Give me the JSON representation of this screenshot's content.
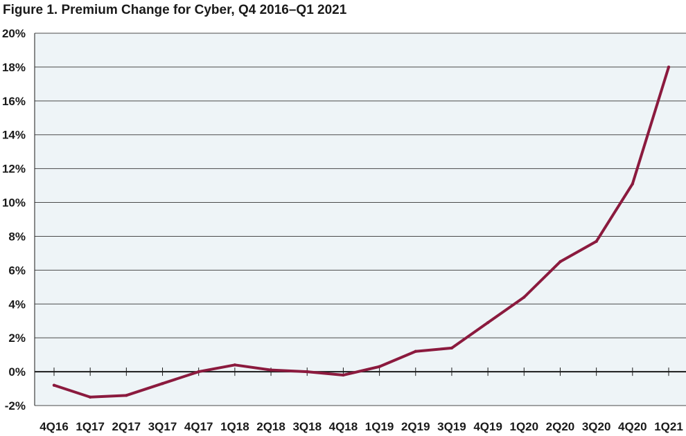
{
  "chart_data": {
    "type": "line",
    "title": "Figure 1. Premium Change for Cyber, Q4 2016–Q1 2021",
    "xlabel": "",
    "ylabel": "",
    "categories": [
      "4Q16",
      "1Q17",
      "2Q17",
      "3Q17",
      "4Q17",
      "1Q18",
      "2Q18",
      "3Q18",
      "4Q18",
      "1Q19",
      "2Q19",
      "3Q19",
      "4Q19",
      "1Q20",
      "2Q20",
      "3Q20",
      "4Q20",
      "1Q21"
    ],
    "series": [
      {
        "values": [
          -0.8,
          -1.5,
          -1.4,
          -0.7,
          0.0,
          0.4,
          0.1,
          0.0,
          -0.2,
          0.3,
          1.2,
          1.4,
          2.9,
          4.4,
          6.5,
          7.7,
          11.1,
          18.0
        ]
      }
    ],
    "ylim": [
      -2,
      20
    ],
    "yticks": [
      -2,
      0,
      2,
      4,
      6,
      8,
      10,
      12,
      14,
      16,
      18,
      20
    ],
    "ytick_labels": [
      "-2%",
      "0%",
      "2%",
      "4%",
      "6%",
      "8%",
      "10%",
      "12%",
      "14%",
      "16%",
      "18%",
      "20%"
    ],
    "grid": true,
    "legend": "none",
    "colors": {
      "line": "#8b1a3e",
      "plot_background": "#eef4f7",
      "gridline": "#4a4a4a",
      "zero_line": "#1a1a1a"
    }
  }
}
